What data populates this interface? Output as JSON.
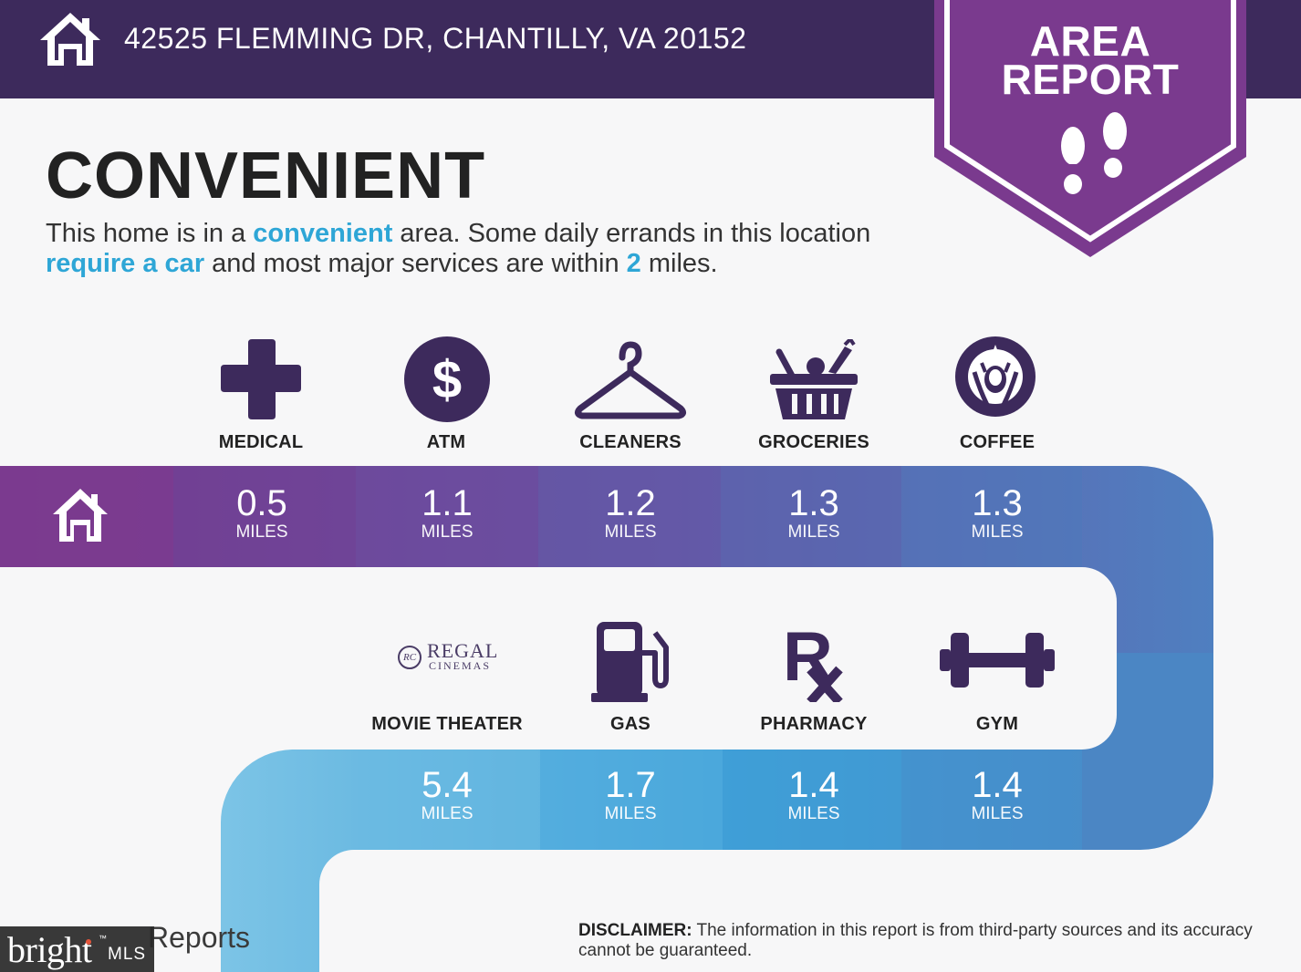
{
  "header": {
    "address": "42525 FLEMMING DR, CHANTILLY, VA 20152",
    "home_icon": "house-icon"
  },
  "badge": {
    "title_line1": "AREA",
    "title_line2": "REPORT",
    "icon": "footprints-icon",
    "color": "#7a3a8e"
  },
  "main": {
    "title": "CONVENIENT",
    "intro": {
      "p1": "This home is in a ",
      "h1": "convenient",
      "p2": " area. Some daily errands in this location ",
      "h2": "require a car",
      "p3": " and most major services are within ",
      "h3": "2",
      "p4": " miles."
    }
  },
  "colors": {
    "header": "#3d2a5c",
    "icon": "#3d2a5c",
    "highlight": "#2ea6d6",
    "route_start": "#7a3a8e",
    "route_mid": "#4f7fc0",
    "route_end": "#7cc4e6"
  },
  "amenities_row1": [
    {
      "label": "MEDICAL",
      "icon": "medical-cross-icon",
      "distance": "0.5",
      "unit": "MILES"
    },
    {
      "label": "ATM",
      "icon": "dollar-icon",
      "distance": "1.1",
      "unit": "MILES"
    },
    {
      "label": "CLEANERS",
      "icon": "hanger-icon",
      "distance": "1.2",
      "unit": "MILES"
    },
    {
      "label": "GROCERIES",
      "icon": "grocery-basket-icon",
      "distance": "1.3",
      "unit": "MILES"
    },
    {
      "label": "COFFEE",
      "icon": "starbucks-logo-icon",
      "distance": "1.3",
      "unit": "MILES"
    }
  ],
  "amenities_row2": [
    {
      "label": "MOVIE THEATER",
      "icon": "regal-cinemas-logo",
      "distance": "5.4",
      "unit": "MILES"
    },
    {
      "label": "GAS",
      "icon": "gas-pump-icon",
      "distance": "1.7",
      "unit": "MILES"
    },
    {
      "label": "PHARMACY",
      "icon": "rx-icon",
      "distance": "1.4",
      "unit": "MILES"
    },
    {
      "label": "GYM",
      "icon": "dumbbell-icon",
      "distance": "1.4",
      "unit": "MILES"
    }
  ],
  "regal": {
    "word": "REGAL",
    "sub": "CINEMAS",
    "mark": "RC"
  },
  "footer": {
    "disclaimer_label": "DISCLAIMER:",
    "disclaimer_text": " The information in this report is from third-party sources and its accuracy cannot be guaranteed.",
    "brand_partial": "Reports",
    "mls_bright": "bright",
    "mls_tm": "™",
    "mls_text": "MLS"
  }
}
